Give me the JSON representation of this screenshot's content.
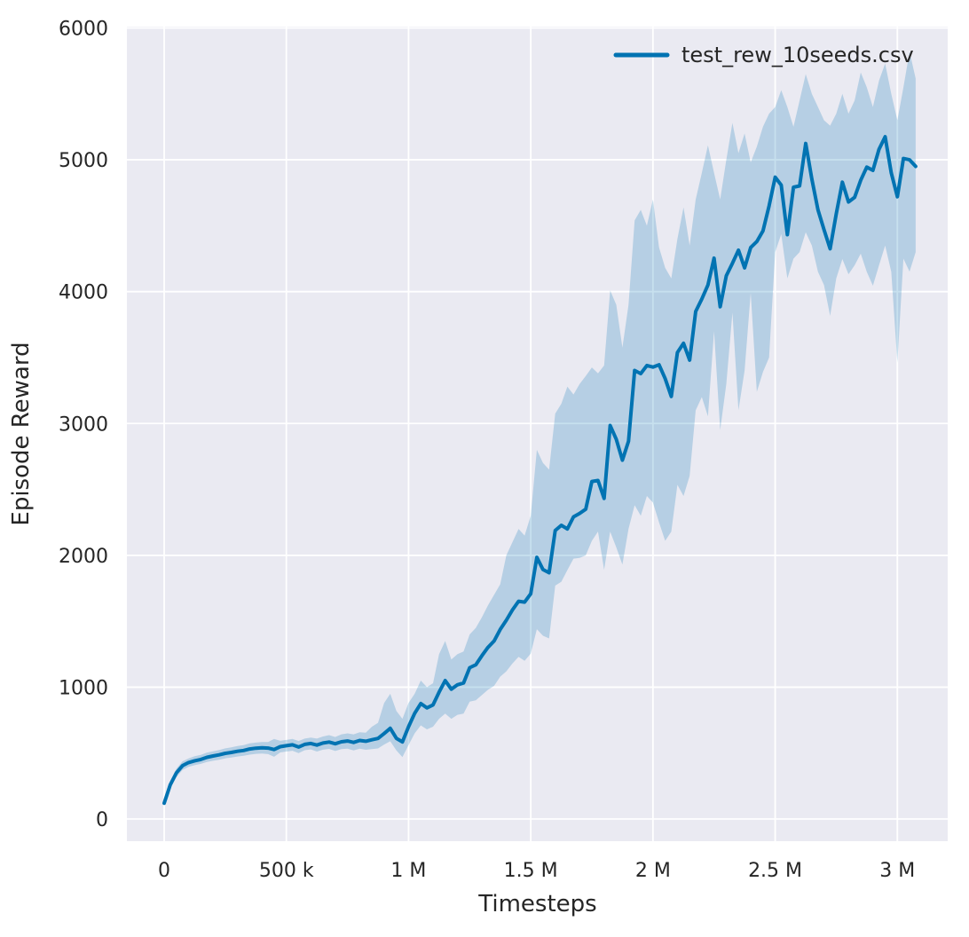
{
  "figure": {
    "background": "#ffffff",
    "plot_background": "#eaeaf2",
    "grid_color": "#ffffff",
    "text_color": "#262626"
  },
  "chart_data": {
    "type": "line",
    "title": "",
    "xlabel": "Timesteps",
    "ylabel": "Episode Reward",
    "grid": true,
    "legend": {
      "position": "upper right",
      "entries": [
        "test_rew_10seeds.csv"
      ]
    },
    "x_unit": "timesteps_millions",
    "x_start": 0,
    "x_step": 0.025,
    "xlim": [
      -0.1525,
      3.206
    ],
    "ylim": [
      -168,
      6010
    ],
    "x_ticks": {
      "values": [
        0,
        0.5,
        1,
        1.5,
        2,
        2.5,
        3
      ],
      "labels": [
        "0",
        "500 k",
        "1 M",
        "1.5 M",
        "2 M",
        "2.5 M",
        "3 M"
      ]
    },
    "y_ticks": {
      "values": [
        0,
        1000,
        2000,
        3000,
        4000,
        5000,
        6000
      ],
      "labels": [
        "0",
        "1000",
        "2000",
        "3000",
        "4000",
        "5000",
        "6000"
      ]
    },
    "series": [
      {
        "name": "test_rew_10seeds.csv",
        "color": "#0173b2",
        "line_width": 4,
        "band_alpha": 0.22,
        "mean": [
          120,
          260,
          350,
          405,
          428,
          442,
          452,
          468,
          478,
          487,
          498,
          505,
          514,
          520,
          531,
          537,
          540,
          538,
          527,
          549,
          556,
          563,
          546,
          566,
          573,
          561,
          576,
          584,
          571,
          586,
          592,
          581,
          596,
          590,
          601,
          611,
          648,
          688,
          612,
          585,
          700,
          802,
          876,
          843,
          866,
          962,
          1050,
          985,
          1018,
          1032,
          1148,
          1170,
          1238,
          1302,
          1350,
          1438,
          1508,
          1586,
          1652,
          1645,
          1708,
          1985,
          1892,
          1868,
          2188,
          2228,
          2200,
          2292,
          2318,
          2350,
          2560,
          2568,
          2432,
          2985,
          2880,
          2722,
          2865,
          3402,
          3378,
          3440,
          3428,
          3445,
          3340,
          3205,
          3538,
          3608,
          3480,
          3850,
          3944,
          4050,
          4254,
          3885,
          4120,
          4215,
          4315,
          4180,
          4335,
          4380,
          4460,
          4650,
          4868,
          4808,
          4432,
          4792,
          4802,
          5124,
          4854,
          4620,
          4470,
          4325,
          4590,
          4830,
          4680,
          4715,
          4845,
          4945,
          4920,
          5080,
          5175,
          4900,
          4720,
          5010,
          5000,
          4950
        ],
        "band_low": [
          110,
          235,
          318,
          372,
          395,
          408,
          418,
          432,
          442,
          450,
          460,
          466,
          474,
          480,
          488,
          494,
          496,
          492,
          472,
          505,
          512,
          518,
          500,
          522,
          528,
          512,
          526,
          532,
          516,
          530,
          534,
          520,
          534,
          525,
          530,
          535,
          565,
          590,
          520,
          470,
          560,
          650,
          710,
          680,
          700,
          760,
          800,
          760,
          790,
          800,
          890,
          900,
          940,
          980,
          1010,
          1080,
          1120,
          1180,
          1230,
          1200,
          1255,
          1440,
          1390,
          1370,
          1770,
          1800,
          1888,
          1975,
          1980,
          2000,
          2110,
          2180,
          1890,
          2180,
          2060,
          1930,
          2200,
          2380,
          2300,
          2450,
          2400,
          2250,
          2110,
          2180,
          2535,
          2450,
          2603,
          3100,
          3200,
          3054,
          3700,
          2950,
          3300,
          3840,
          3100,
          3400,
          3990,
          3240,
          3390,
          3500,
          4300,
          4436,
          4100,
          4250,
          4300,
          4450,
          4350,
          4150,
          4050,
          3816,
          4100,
          4247,
          4132,
          4200,
          4288,
          4150,
          4045,
          4200,
          4350,
          4150,
          3460,
          4250,
          4152,
          4300
        ],
        "band_high": [
          132,
          285,
          382,
          438,
          460,
          476,
          486,
          504,
          514,
          524,
          536,
          544,
          554,
          560,
          574,
          580,
          584,
          584,
          607,
          593,
          600,
          608,
          592,
          610,
          618,
          610,
          626,
          636,
          622,
          642,
          650,
          642,
          658,
          655,
          700,
          730,
          880,
          950,
          820,
          760,
          880,
          950,
          1050,
          1000,
          1030,
          1250,
          1350,
          1210,
          1250,
          1270,
          1400,
          1450,
          1530,
          1620,
          1700,
          1780,
          2000,
          2100,
          2200,
          2150,
          2300,
          2800,
          2700,
          2650,
          3075,
          3150,
          3280,
          3220,
          3300,
          3360,
          3425,
          3380,
          3440,
          4010,
          3900,
          3575,
          3900,
          4540,
          4620,
          4500,
          4700,
          4335,
          4180,
          4100,
          4400,
          4640,
          4350,
          4700,
          4900,
          5110,
          4900,
          4700,
          5000,
          5280,
          5050,
          5200,
          4980,
          5100,
          5250,
          5350,
          5400,
          5528,
          5400,
          5250,
          5450,
          5650,
          5500,
          5400,
          5300,
          5259,
          5350,
          5500,
          5350,
          5450,
          5663,
          5550,
          5400,
          5600,
          5730,
          5500,
          5300,
          5550,
          5820,
          5616
        ]
      }
    ]
  }
}
